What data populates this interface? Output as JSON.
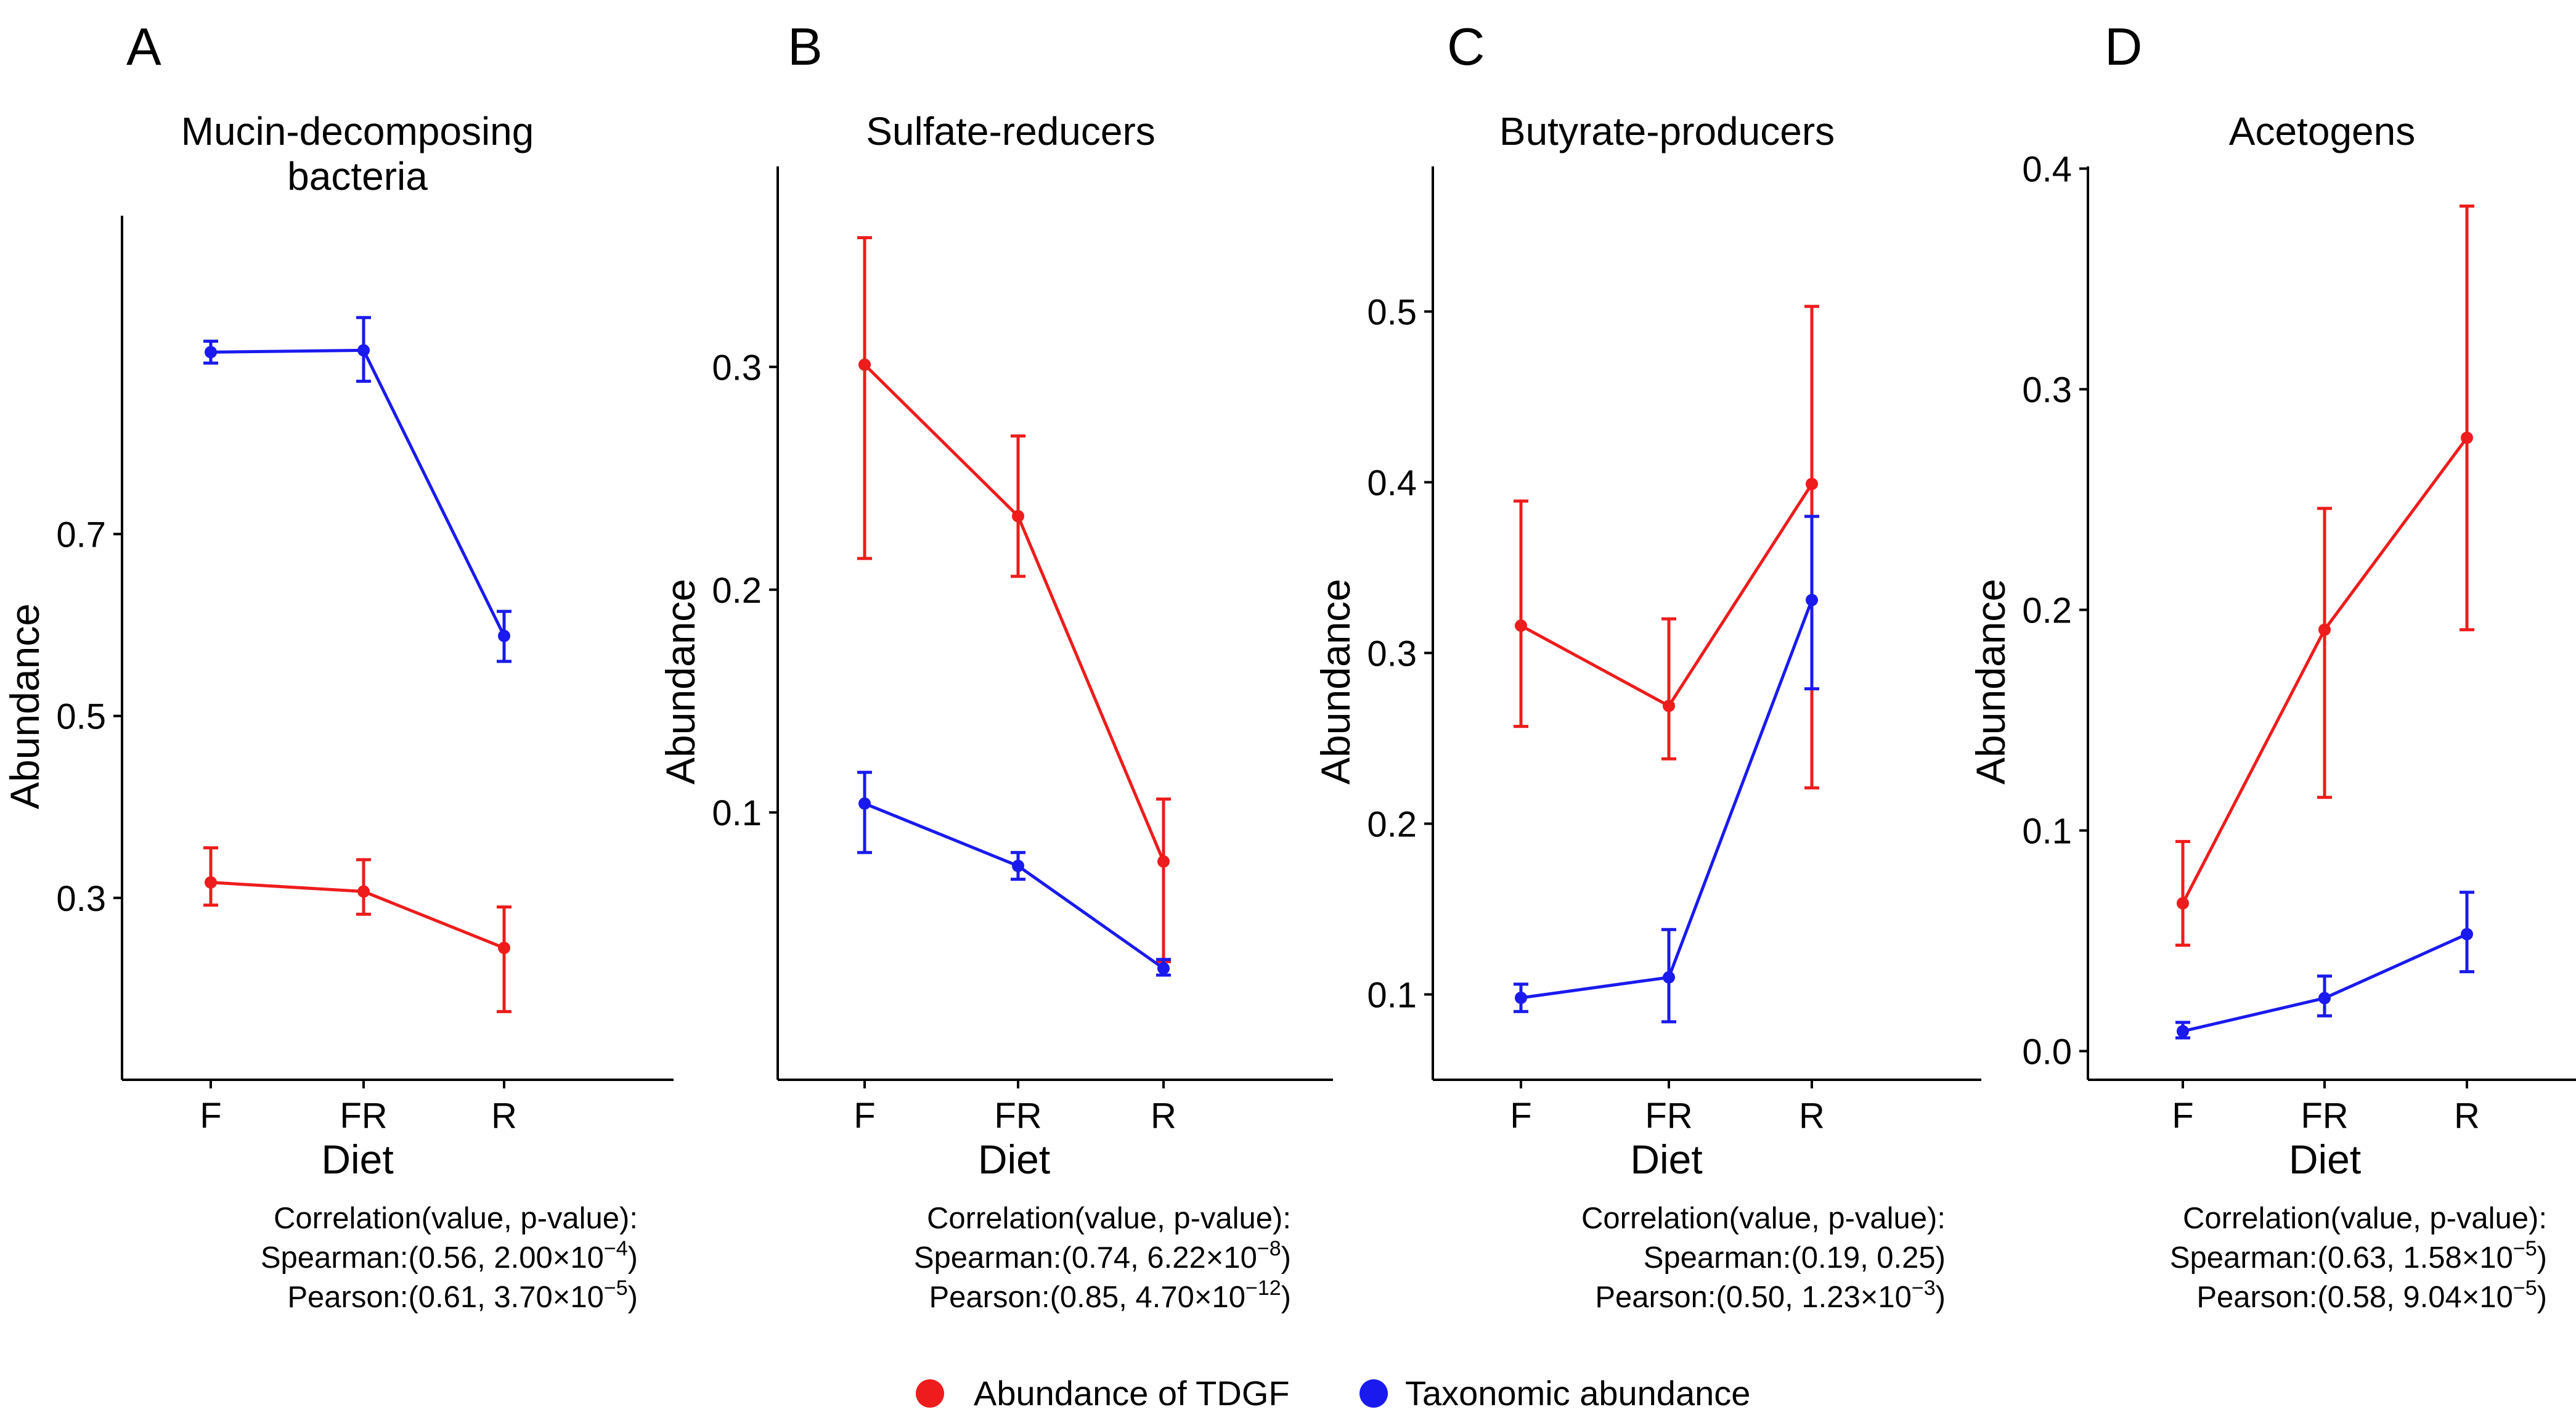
{
  "colors": {
    "tdgf": "#ee1c1c",
    "taxonomic": "#1a1aee"
  },
  "legend": {
    "tdgf_label": "Abundance of TDGF",
    "taxonomic_label": "Taxonomic abundance"
  },
  "chart_data": [
    {
      "type": "line",
      "panel": "A",
      "title": [
        "Mucin-decomposing",
        "bacteria"
      ],
      "xlabel": "Diet",
      "ylabel": "Abundance",
      "categories": [
        "F",
        "FR",
        "R"
      ],
      "ylim": [
        0.1,
        1.05
      ],
      "yticks": [
        0.3,
        0.5,
        0.7
      ],
      "ytick_labels": [
        "0.3",
        "0.5",
        "0.7"
      ],
      "series": [
        {
          "name": "Abundance of TDGF",
          "color": "#ee1c1c",
          "values": [
            0.317,
            0.307,
            0.245
          ],
          "lower": [
            0.292,
            0.282,
            0.175
          ],
          "upper": [
            0.355,
            0.342,
            0.29
          ]
        },
        {
          "name": "Taxonomic abundance",
          "color": "#1a1aee",
          "values": [
            0.9,
            0.902,
            0.588
          ],
          "lower": [
            0.888,
            0.868,
            0.56
          ],
          "upper": [
            0.912,
            0.938,
            0.615
          ]
        }
      ],
      "correlation": {
        "header": "Correlation(value, p-value):",
        "spearman": {
          "prefix": "Spearman:(0.56, 2.00×10",
          "exp": "−4",
          "suffix": ")"
        },
        "pearson": {
          "prefix": "Pearson:(0.61, 3.70×10",
          "exp": "−5",
          "suffix": ")"
        }
      }
    },
    {
      "type": "line",
      "panel": "B",
      "title": [
        "Sulfate-reducers"
      ],
      "xlabel": "Diet",
      "ylabel": "Abundance",
      "categories": [
        "F",
        "FR",
        "R"
      ],
      "ylim": [
        -0.02,
        0.39
      ],
      "yticks": [
        0.1,
        0.2,
        0.3
      ],
      "ytick_labels": [
        "0.1",
        "0.2",
        "0.3"
      ],
      "series": [
        {
          "name": "Abundance of TDGF",
          "color": "#ee1c1c",
          "values": [
            0.301,
            0.233,
            0.078
          ],
          "lower": [
            0.214,
            0.206,
            0.033
          ],
          "upper": [
            0.358,
            0.269,
            0.106
          ]
        },
        {
          "name": "Taxonomic abundance",
          "color": "#1a1aee",
          "values": [
            0.104,
            0.076,
            0.03
          ],
          "lower": [
            0.082,
            0.07,
            0.027
          ],
          "upper": [
            0.118,
            0.082,
            0.034
          ]
        }
      ],
      "correlation": {
        "header": "Correlation(value, p-value):",
        "spearman": {
          "prefix": "Spearman:(0.74, 6.22×10",
          "exp": "−8",
          "suffix": ")"
        },
        "pearson": {
          "prefix": "Pearson:(0.85, 4.70×10",
          "exp": "−12",
          "suffix": ")"
        }
      }
    },
    {
      "type": "line",
      "panel": "C",
      "title": [
        "Butyrate-producers"
      ],
      "xlabel": "Diet",
      "ylabel": "Abundance",
      "categories": [
        "F",
        "FR",
        "R"
      ],
      "ylim": [
        0.05,
        0.585
      ],
      "yticks": [
        0.1,
        0.2,
        0.3,
        0.4,
        0.5
      ],
      "ytick_labels": [
        "0.1",
        "0.2",
        "0.3",
        "0.4",
        "0.5"
      ],
      "series": [
        {
          "name": "Abundance of TDGF",
          "color": "#ee1c1c",
          "values": [
            0.316,
            0.269,
            0.399
          ],
          "lower": [
            0.257,
            0.238,
            0.221
          ],
          "upper": [
            0.389,
            0.32,
            0.503
          ]
        },
        {
          "name": "Taxonomic abundance",
          "color": "#1a1aee",
          "values": [
            0.098,
            0.11,
            0.331
          ],
          "lower": [
            0.09,
            0.084,
            0.279
          ],
          "upper": [
            0.106,
            0.138,
            0.38
          ]
        }
      ],
      "correlation": {
        "header": "Correlation(value, p-value):",
        "spearman": {
          "prefix": "Spearman:(0.19, 0.25)",
          "exp": "",
          "suffix": ""
        },
        "pearson": {
          "prefix": "Pearson:(0.50, 1.23×10",
          "exp": "−3",
          "suffix": ")"
        }
      }
    },
    {
      "type": "line",
      "panel": "D",
      "title": [
        "Acetogens"
      ],
      "xlabel": "Diet",
      "ylabel": "Abundance",
      "categories": [
        "F",
        "FR",
        "R"
      ],
      "ylim": [
        -0.013,
        0.401
      ],
      "yticks": [
        0.0,
        0.1,
        0.2,
        0.3,
        0.4
      ],
      "ytick_labels": [
        "0.0",
        "0.1",
        "0.2",
        "0.3",
        "0.4"
      ],
      "series": [
        {
          "name": "Abundance of TDGF",
          "color": "#ee1c1c",
          "values": [
            0.067,
            0.191,
            0.278
          ],
          "lower": [
            0.048,
            0.115,
            0.191
          ],
          "upper": [
            0.095,
            0.246,
            0.383
          ]
        },
        {
          "name": "Taxonomic abundance",
          "color": "#1a1aee",
          "values": [
            0.009,
            0.024,
            0.053
          ],
          "lower": [
            0.006,
            0.016,
            0.036
          ],
          "upper": [
            0.013,
            0.034,
            0.072
          ]
        }
      ],
      "correlation": {
        "header": "Correlation(value, p-value):",
        "spearman": {
          "prefix": "Spearman:(0.63, 1.58×10",
          "exp": "−5",
          "suffix": ")"
        },
        "pearson": {
          "prefix": "Pearson:(0.58, 9.04×10",
          "exp": "−5",
          "suffix": ")"
        }
      }
    }
  ]
}
